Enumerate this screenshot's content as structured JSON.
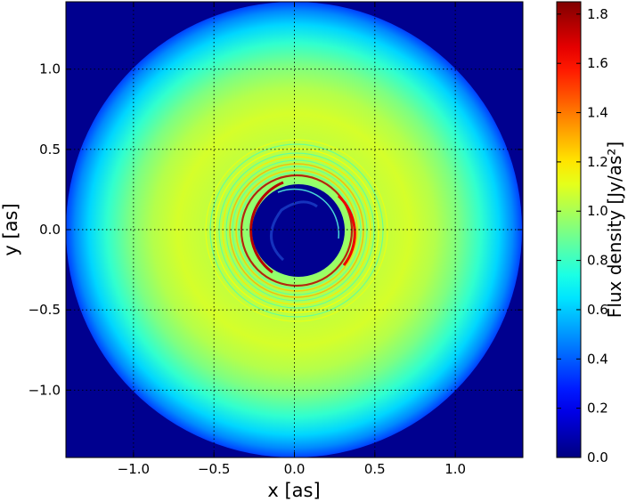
{
  "chart_data": {
    "type": "heatmap",
    "xlabel": "x [as]",
    "ylabel": "y [as]",
    "xlim": [
      -1.42,
      1.42
    ],
    "ylim": [
      -1.42,
      1.42
    ],
    "xticks": [
      -1.0,
      -0.5,
      0.0,
      0.5,
      1.0
    ],
    "yticks": [
      -1.0,
      -0.5,
      0.0,
      0.5,
      1.0
    ],
    "xtick_labels": [
      "−1.0",
      "−0.5",
      "0.0",
      "0.5",
      "1.0"
    ],
    "ytick_labels": [
      "−1.0",
      "−0.5",
      "0.0",
      "0.5",
      "1.0"
    ],
    "grid": true,
    "grid_style": "dotted",
    "colormap": "jet",
    "colorbar": {
      "label": "Flux density [Jy/as²]",
      "range": [
        0.0,
        1.85
      ],
      "ticks": [
        0.0,
        0.2,
        0.4,
        0.6,
        0.8,
        1.0,
        1.2,
        1.4,
        1.6,
        1.8
      ],
      "tick_labels": [
        "0.0",
        "0.2",
        "0.4",
        "0.6",
        "0.8",
        "1.0",
        "1.2",
        "1.4",
        "1.6",
        "1.8"
      ]
    },
    "features": {
      "background_value": 0.0,
      "disk_outer_radius": 1.42,
      "disk_edge_value": 0.35,
      "disk_peak_value": 1.08,
      "disk_peak_radius": 0.72,
      "cavity_radius": 0.27,
      "cavity_center": [
        0.03,
        0.0
      ],
      "bright_ring_radius": 0.33,
      "bright_ring_value": 1.75
    },
    "colors": {
      "background": "#00008f",
      "bright_ring": "#e03a10",
      "disk_peak": "#c8f03c"
    }
  }
}
